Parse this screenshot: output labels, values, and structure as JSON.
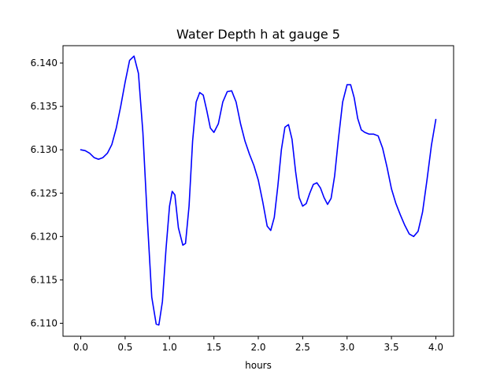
{
  "chart_data": {
    "type": "line",
    "title": "Water Depth h at gauge 5",
    "xlabel": "hours",
    "ylabel": "",
    "xlim": [
      -0.2,
      4.2
    ],
    "ylim": [
      6.1085,
      6.142
    ],
    "xticks": [
      0.0,
      0.5,
      1.0,
      1.5,
      2.0,
      2.5,
      3.0,
      3.5,
      4.0
    ],
    "xtick_labels": [
      "0.0",
      "0.5",
      "1.0",
      "1.5",
      "2.0",
      "2.5",
      "3.0",
      "3.5",
      "4.0"
    ],
    "yticks": [
      6.11,
      6.115,
      6.12,
      6.125,
      6.13,
      6.135,
      6.14
    ],
    "ytick_labels": [
      "6.110",
      "6.115",
      "6.120",
      "6.125",
      "6.130",
      "6.135",
      "6.140"
    ],
    "grid": false,
    "series": [
      {
        "color": "#0000ff",
        "x": [
          0.0,
          0.05,
          0.1,
          0.15,
          0.2,
          0.25,
          0.3,
          0.35,
          0.4,
          0.45,
          0.5,
          0.55,
          0.6,
          0.65,
          0.7,
          0.75,
          0.8,
          0.85,
          0.88,
          0.92,
          0.96,
          1.0,
          1.03,
          1.06,
          1.1,
          1.15,
          1.18,
          1.22,
          1.26,
          1.3,
          1.34,
          1.38,
          1.42,
          1.46,
          1.5,
          1.55,
          1.6,
          1.65,
          1.7,
          1.75,
          1.8,
          1.85,
          1.9,
          1.95,
          2.0,
          2.05,
          2.1,
          2.14,
          2.18,
          2.22,
          2.26,
          2.3,
          2.34,
          2.38,
          2.42,
          2.46,
          2.5,
          2.54,
          2.58,
          2.62,
          2.66,
          2.7,
          2.74,
          2.78,
          2.82,
          2.86,
          2.9,
          2.95,
          3.0,
          3.04,
          3.08,
          3.12,
          3.16,
          3.2,
          3.25,
          3.3,
          3.35,
          3.4,
          3.45,
          3.5,
          3.55,
          3.6,
          3.65,
          3.7,
          3.75,
          3.8,
          3.85,
          3.9,
          3.95,
          4.0
        ],
        "y": [
          6.13,
          6.1299,
          6.1296,
          6.1291,
          6.1289,
          6.1291,
          6.1296,
          6.1306,
          6.1325,
          6.135,
          6.1378,
          6.1403,
          6.1408,
          6.1388,
          6.132,
          6.122,
          6.113,
          6.1099,
          6.1098,
          6.1125,
          6.1185,
          6.1235,
          6.1252,
          6.1248,
          6.121,
          6.119,
          6.1192,
          6.1235,
          6.131,
          6.1355,
          6.1366,
          6.1363,
          6.1345,
          6.1325,
          6.132,
          6.133,
          6.1355,
          6.1367,
          6.1368,
          6.1355,
          6.133,
          6.131,
          6.1295,
          6.1282,
          6.1265,
          6.124,
          6.1212,
          6.1207,
          6.1222,
          6.1258,
          6.13,
          6.1326,
          6.1329,
          6.1312,
          6.1275,
          6.1245,
          6.1235,
          6.1238,
          6.125,
          6.126,
          6.1262,
          6.1256,
          6.1245,
          6.1237,
          6.1244,
          6.127,
          6.131,
          6.1355,
          6.1375,
          6.1375,
          6.136,
          6.1336,
          6.1323,
          6.132,
          6.1318,
          6.1318,
          6.1316,
          6.1302,
          6.128,
          6.1255,
          6.1238,
          6.1225,
          6.1213,
          6.1203,
          6.12,
          6.1206,
          6.1228,
          6.1265,
          6.1305,
          6.1335
        ]
      }
    ]
  }
}
